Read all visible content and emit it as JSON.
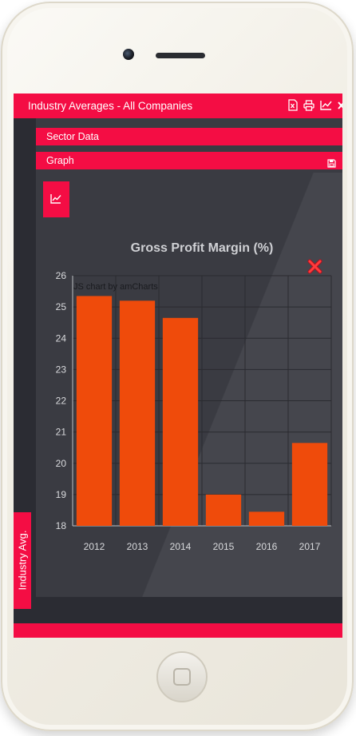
{
  "app": {
    "title": "Industry Averages - All Companies",
    "sector_label": "Sector Data",
    "graph_label": "Graph",
    "side_tab": "Industry Avg."
  },
  "icons": [
    "excel-icon",
    "print-icon",
    "line-chart-icon",
    "close-icon",
    "save-icon",
    "chart-button-icon",
    "remove-chart-icon"
  ],
  "colors": {
    "accent": "#f40d44",
    "bar": "#ef4b0b",
    "background": "#3a3b42"
  },
  "chart_data": {
    "type": "bar",
    "title": "Gross Profit Margin (%)",
    "credit": "JS chart by amCharts",
    "categories": [
      "2012",
      "2013",
      "2014",
      "2015",
      "2016",
      "2017"
    ],
    "values": [
      25.35,
      25.2,
      24.65,
      19.0,
      18.45,
      20.65
    ],
    "y_ticks": [
      "18",
      "19",
      "20",
      "21",
      "22",
      "23",
      "24",
      "25",
      "26"
    ],
    "ylim": [
      18,
      26
    ],
    "grid": true,
    "xlabel": "",
    "ylabel": ""
  }
}
